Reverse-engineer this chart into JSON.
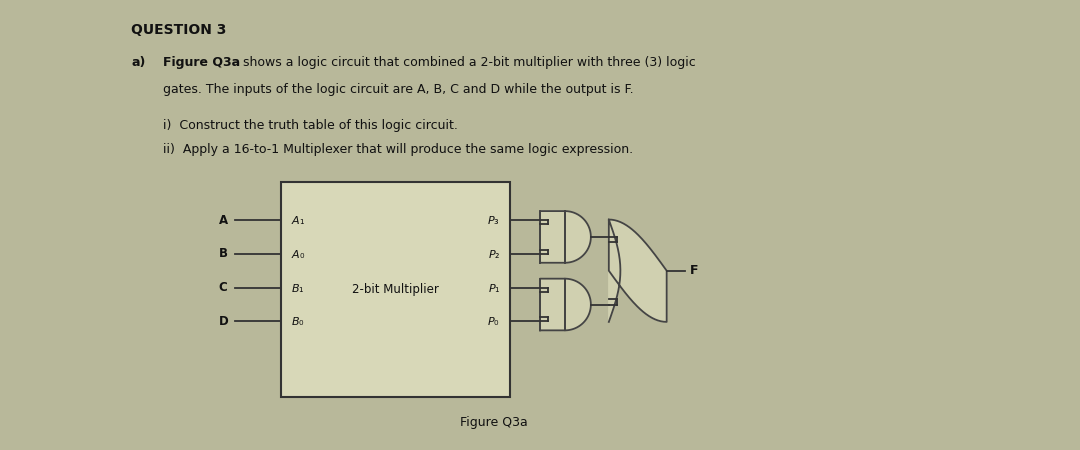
{
  "title": "QUESTION 3",
  "bg_color": "#b8b89a",
  "text_color": "#111111",
  "para_a_bold": "Figure Q3a",
  "para_a_rest1": " shows a logic circuit that combined a 2-bit multiplier with three (3) logic",
  "para_a_rest2": "gates. The inputs of the logic circuit are A, B, C and D while the output is F.",
  "item_i": "i)  Construct the truth table of this logic circuit.",
  "item_ii": "ii)  Apply a 16-to-1 Multiplexer that will produce the same logic expression.",
  "fig_caption": "Figure Q3a",
  "input_names": [
    "A",
    "B",
    "C",
    "D"
  ],
  "input_pins": [
    "A₁",
    "A₀",
    "B₁",
    "B₀"
  ],
  "output_pins": [
    "P₃",
    "P₂",
    "P₁",
    "P₀"
  ],
  "multiplier_label": "2-bit Multiplier",
  "output_label": "F",
  "box_fill": "#d8d8b8",
  "box_edge": "#333333",
  "gate_fill": "#d0d0b0",
  "gate_edge": "#444444",
  "wire_color": "#333333",
  "title_fontsize": 10,
  "body_fontsize": 9,
  "small_fontsize": 8.5
}
